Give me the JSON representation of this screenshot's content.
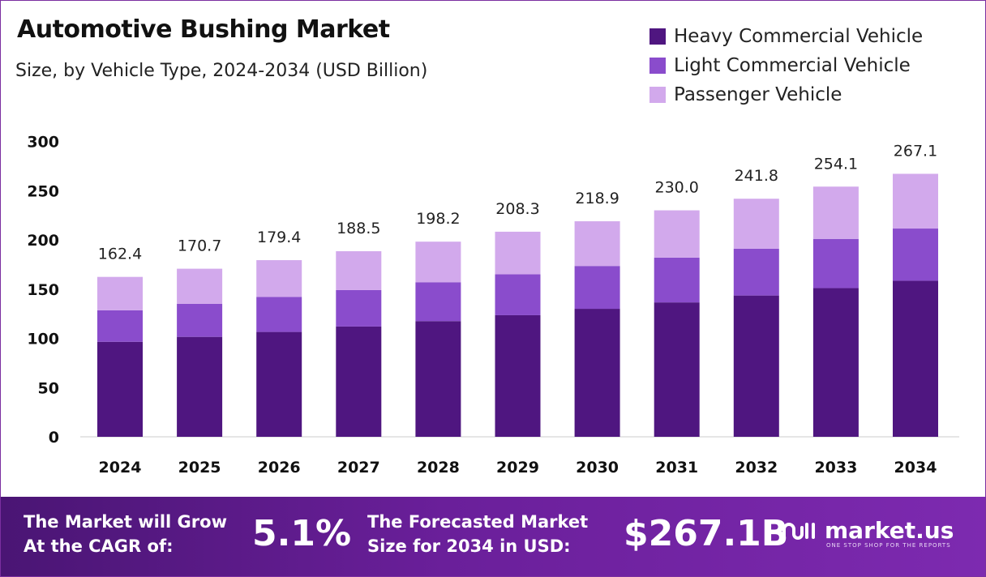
{
  "header": {
    "title": "Automotive Bushing Market",
    "subtitle": "Size, by Vehicle Type, 2024-2034 (USD Billion)"
  },
  "legend": [
    {
      "label": "Heavy Commercial Vehicle",
      "color": "#4f1680"
    },
    {
      "label": "Light Commercial Vehicle",
      "color": "#8a4ccc"
    },
    {
      "label": "Passenger Vehicle",
      "color": "#d2a9ec"
    }
  ],
  "chart_data": {
    "type": "bar",
    "stacked": true,
    "categories": [
      "2024",
      "2025",
      "2026",
      "2027",
      "2028",
      "2029",
      "2030",
      "2031",
      "2032",
      "2033",
      "2034"
    ],
    "series": [
      {
        "name": "Heavy Commercial Vehicle",
        "color": "#4f1680",
        "values": [
          96.5,
          101.5,
          106.5,
          112.0,
          117.5,
          123.5,
          130.0,
          136.5,
          143.5,
          151.0,
          158.5
        ]
      },
      {
        "name": "Light Commercial Vehicle",
        "color": "#8a4ccc",
        "values": [
          32.0,
          33.5,
          35.5,
          37.0,
          39.5,
          41.5,
          43.5,
          45.5,
          47.5,
          50.0,
          53.0
        ]
      },
      {
        "name": "Passenger Vehicle",
        "color": "#d2a9ec",
        "values": [
          33.9,
          35.7,
          37.4,
          39.5,
          41.2,
          43.3,
          45.4,
          48.0,
          50.8,
          53.1,
          55.6
        ]
      }
    ],
    "totals": [
      "162.4",
      "170.7",
      "179.4",
      "188.5",
      "198.2",
      "208.3",
      "218.9",
      "230.0",
      "241.8",
      "254.1",
      "267.1"
    ],
    "yticks": [
      "0",
      "50",
      "100",
      "150",
      "200",
      "250",
      "300"
    ],
    "ylim": [
      0,
      300
    ],
    "grid": false,
    "legend_position": "top-right"
  },
  "footer": {
    "cagr_label_line1": "The Market will Grow",
    "cagr_label_line2": "At the CAGR of:",
    "cagr_value": "5.1%",
    "forecast_label_line1": "The Forecasted Market",
    "forecast_label_line2": "Size for 2034 in USD:",
    "forecast_value": "$267.1B",
    "brand_name": "market.us",
    "brand_tagline": "ONE STOP SHOP FOR THE REPORTS"
  }
}
